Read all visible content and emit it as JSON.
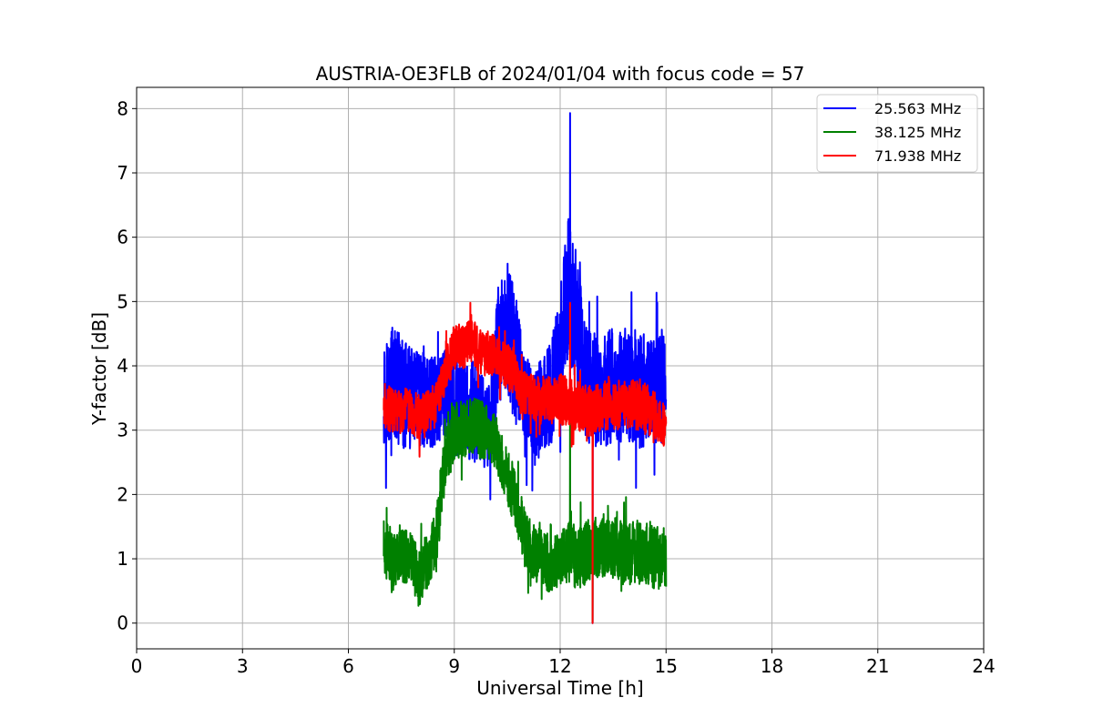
{
  "chart_data": {
    "type": "line",
    "title": "AUSTRIA-OE3FLB of 2024/01/04 with focus code = 57",
    "xlabel": "Universal Time [h]",
    "ylabel": "Y-factor [dB]",
    "xlim": [
      0,
      24
    ],
    "ylim": [
      -0.4,
      8.33
    ],
    "xticks": [
      0,
      3,
      6,
      9,
      12,
      15,
      18,
      21,
      24
    ],
    "yticks": [
      0,
      1,
      2,
      3,
      4,
      5,
      6,
      7,
      8
    ],
    "grid": true,
    "legend_position": "top-right",
    "series": [
      {
        "name": "25.563 MHz",
        "color": "#0000ff",
        "x": [
          7.0,
          7.25,
          7.5,
          7.75,
          8.0,
          8.25,
          8.5,
          8.75,
          9.0,
          9.25,
          9.5,
          9.75,
          10.0,
          10.25,
          10.5,
          10.75,
          11.0,
          11.25,
          11.5,
          11.75,
          12.0,
          12.25,
          12.5,
          12.75,
          13.0,
          13.25,
          13.5,
          13.75,
          14.0,
          14.25,
          14.5,
          14.75,
          15.0
        ],
        "y": [
          3.6,
          3.7,
          3.6,
          3.5,
          3.5,
          3.4,
          3.5,
          3.6,
          3.4,
          3.3,
          3.3,
          3.2,
          3.0,
          4.3,
          4.6,
          4.1,
          3.4,
          3.2,
          3.4,
          3.6,
          4.3,
          5.2,
          4.6,
          3.7,
          3.6,
          3.6,
          3.7,
          3.7,
          3.7,
          3.6,
          3.7,
          3.7,
          3.7
        ],
        "spread": [
          0.85,
          0.9,
          0.9,
          0.8,
          0.75,
          0.75,
          0.7,
          0.75,
          0.8,
          0.8,
          0.8,
          0.7,
          0.7,
          1.0,
          1.1,
          1.05,
          0.85,
          0.8,
          0.8,
          0.85,
          0.95,
          1.2,
          1.0,
          0.9,
          0.9,
          0.9,
          0.9,
          0.9,
          0.9,
          0.9,
          0.9,
          0.9,
          0.9
        ],
        "max": 7.93,
        "min": 0.0
      },
      {
        "name": "38.125 MHz",
        "color": "#008000",
        "x": [
          7.0,
          7.25,
          7.5,
          7.75,
          8.0,
          8.25,
          8.5,
          8.75,
          9.0,
          9.25,
          9.5,
          9.75,
          10.0,
          10.25,
          10.5,
          10.75,
          11.0,
          11.25,
          11.5,
          11.75,
          12.0,
          12.25,
          12.5,
          12.75,
          13.0,
          13.25,
          13.5,
          13.75,
          14.0,
          14.25,
          14.5,
          14.75,
          15.0
        ],
        "y": [
          1.2,
          1.0,
          1.1,
          1.0,
          0.7,
          1.0,
          1.4,
          2.6,
          3.0,
          3.0,
          3.1,
          3.0,
          3.0,
          2.7,
          2.3,
          1.9,
          1.3,
          1.1,
          1.0,
          0.9,
          1.0,
          1.1,
          1.0,
          1.1,
          1.2,
          1.2,
          1.2,
          1.1,
          1.1,
          1.1,
          1.1,
          1.0,
          1.0
        ],
        "spread": [
          0.45,
          0.45,
          0.45,
          0.45,
          0.45,
          0.45,
          0.5,
          0.45,
          0.45,
          0.45,
          0.45,
          0.45,
          0.45,
          0.45,
          0.45,
          0.45,
          0.45,
          0.45,
          0.45,
          0.45,
          0.45,
          0.5,
          0.5,
          0.5,
          0.5,
          0.5,
          0.5,
          0.5,
          0.5,
          0.5,
          0.5,
          0.5,
          0.5
        ],
        "max": 3.9,
        "min": 0.02
      },
      {
        "name": "71.938 MHz",
        "color": "#ff0000",
        "x": [
          7.0,
          7.25,
          7.5,
          7.75,
          8.0,
          8.25,
          8.5,
          8.75,
          9.0,
          9.25,
          9.5,
          9.75,
          10.0,
          10.25,
          10.5,
          10.75,
          11.0,
          11.25,
          11.5,
          11.75,
          12.0,
          12.25,
          12.5,
          12.75,
          13.0,
          13.25,
          13.5,
          13.75,
          14.0,
          14.25,
          14.5,
          14.75,
          15.0
        ],
        "y": [
          3.4,
          3.3,
          3.3,
          3.3,
          3.2,
          3.3,
          3.4,
          3.9,
          4.3,
          4.3,
          4.4,
          4.2,
          4.2,
          4.1,
          4.0,
          3.8,
          3.6,
          3.5,
          3.5,
          3.5,
          3.5,
          3.4,
          3.4,
          3.3,
          3.3,
          3.4,
          3.4,
          3.4,
          3.4,
          3.4,
          3.3,
          3.2,
          3.0
        ],
        "spread": [
          0.35,
          0.35,
          0.35,
          0.35,
          0.35,
          0.35,
          0.35,
          0.35,
          0.35,
          0.35,
          0.35,
          0.35,
          0.35,
          0.35,
          0.35,
          0.35,
          0.35,
          0.35,
          0.35,
          0.35,
          0.4,
          0.4,
          0.4,
          0.4,
          0.4,
          0.4,
          0.4,
          0.4,
          0.4,
          0.4,
          0.4,
          0.35,
          0.35
        ],
        "max": 4.98,
        "min": 0.0
      }
    ]
  }
}
